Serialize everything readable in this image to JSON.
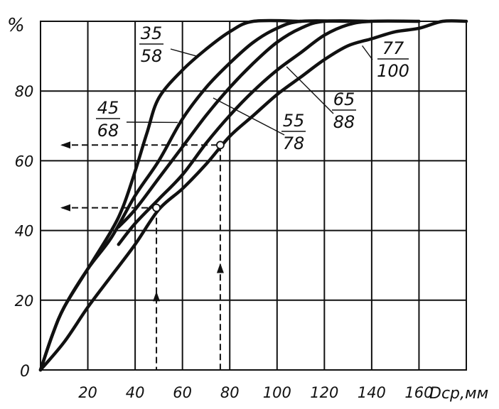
{
  "chart_data": {
    "type": "line",
    "ylabel": "%",
    "xlabel": "Dср,мм",
    "xlim": [
      0,
      180
    ],
    "ylim": [
      0,
      100
    ],
    "x_ticks": [
      20,
      40,
      60,
      80,
      100,
      120,
      140,
      160
    ],
    "y_ticks": [
      20,
      40,
      60,
      80
    ],
    "origin_label": "0",
    "grid": true,
    "series": [
      {
        "name": "35/58",
        "label_num": "35",
        "label_den": "58",
        "points": [
          [
            0,
            0
          ],
          [
            5,
            10
          ],
          [
            10,
            18
          ],
          [
            20,
            29
          ],
          [
            30,
            40
          ],
          [
            35,
            47
          ],
          [
            40,
            57
          ],
          [
            45,
            68
          ],
          [
            50,
            78
          ],
          [
            60,
            86
          ],
          [
            70,
            92
          ],
          [
            80,
            97
          ],
          [
            90,
            100
          ],
          [
            110,
            100
          ]
        ]
      },
      {
        "name": "45/68",
        "label_num": "45",
        "label_den": "68",
        "points": [
          [
            0,
            0
          ],
          [
            5,
            10
          ],
          [
            10,
            18
          ],
          [
            20,
            29
          ],
          [
            30,
            38
          ],
          [
            40,
            50
          ],
          [
            50,
            60
          ],
          [
            60,
            72
          ],
          [
            70,
            81
          ],
          [
            80,
            88
          ],
          [
            90,
            94
          ],
          [
            100,
            98
          ],
          [
            110,
            100
          ],
          [
            130,
            100
          ]
        ]
      },
      {
        "name": "55/78",
        "label_num": "55",
        "label_den": "78",
        "points": [
          [
            33,
            41
          ],
          [
            40,
            46
          ],
          [
            50,
            55
          ],
          [
            60,
            64
          ],
          [
            70,
            73
          ],
          [
            80,
            81
          ],
          [
            90,
            88
          ],
          [
            100,
            94
          ],
          [
            110,
            98
          ],
          [
            120,
            100
          ],
          [
            140,
            100
          ]
        ]
      },
      {
        "name": "65/88",
        "label_num": "65",
        "label_den": "88",
        "points": [
          [
            33,
            36
          ],
          [
            40,
            42
          ],
          [
            50,
            49
          ],
          [
            60,
            56
          ],
          [
            70,
            65
          ],
          [
            80,
            73
          ],
          [
            90,
            80
          ],
          [
            100,
            86
          ],
          [
            110,
            91
          ],
          [
            120,
            96
          ],
          [
            130,
            99
          ],
          [
            140,
            100
          ],
          [
            160,
            100
          ]
        ]
      },
      {
        "name": "77/100",
        "label_num": "77",
        "label_den": "100",
        "points": [
          [
            0,
            0
          ],
          [
            10,
            8
          ],
          [
            20,
            18
          ],
          [
            30,
            27
          ],
          [
            40,
            36
          ],
          [
            50,
            46
          ],
          [
            60,
            52
          ],
          [
            70,
            59
          ],
          [
            80,
            67
          ],
          [
            90,
            73
          ],
          [
            100,
            79
          ],
          [
            110,
            84
          ],
          [
            120,
            89
          ],
          [
            130,
            93
          ],
          [
            140,
            95
          ],
          [
            150,
            97
          ],
          [
            160,
            98
          ],
          [
            170,
            100
          ],
          [
            180,
            100
          ]
        ]
      }
    ],
    "markers": [
      {
        "x": 49,
        "y": 46.5
      },
      {
        "x": 76,
        "y": 64.5
      }
    ],
    "guides": [
      {
        "x": 49,
        "y": 46.5
      },
      {
        "x": 76,
        "y": 64.5
      }
    ]
  }
}
